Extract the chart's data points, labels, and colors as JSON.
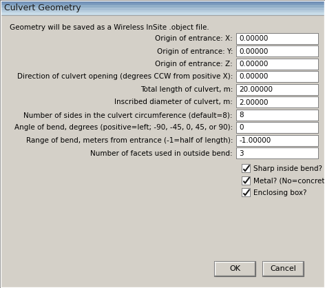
{
  "title": "Culvert Geometry",
  "subtitle": "Geometry will be saved as a Wireless InSite .object file.",
  "fields": [
    {
      "label": "Origin of entrance: X:",
      "value": "0.00000"
    },
    {
      "label": "Origin of entrance: Y:",
      "value": "0.00000"
    },
    {
      "label": "Origin of entrance: Z:",
      "value": "0.00000"
    },
    {
      "label": "Direction of culvert opening (degrees CCW from positive X):",
      "value": "0.00000"
    },
    {
      "label": "Total length of culvert, m:",
      "value": "20.00000"
    },
    {
      "label": "Inscribed diameter of culvert, m:",
      "value": "2.00000"
    },
    {
      "label": "Number of sides in the culvert circumference (default=8):",
      "value": "8"
    },
    {
      "label": "Angle of bend, degrees (positive=left; -90, -45, 0, 45, or 90):",
      "value": "0"
    },
    {
      "label": "Range of bend, meters from entrance (-1=half of length):",
      "value": "-1.00000"
    },
    {
      "label": "Number of facets used in outside bend:",
      "value": "3"
    }
  ],
  "checkboxes": [
    {
      "label": "Sharp inside bend?",
      "checked": true
    },
    {
      "label": "Metal? (No=concrete)",
      "checked": true
    },
    {
      "label": "Enclosing box?",
      "checked": true
    }
  ],
  "buttons": [
    "OK",
    "Cancel"
  ],
  "bg_color": "#d4d0c8",
  "field_bg": "#ffffff",
  "text_color": "#000000",
  "title_text_color": "#1a1a1a",
  "font_size": 7.5,
  "title_font_size": 9.0,
  "titlebar_colors": [
    "#c8dce8",
    "#b8cede",
    "#a8c0d4",
    "#90aec8",
    "#7898bc",
    "#6888b0"
  ],
  "fig_width": 4.72,
  "fig_height": 4.18,
  "dpi": 100
}
